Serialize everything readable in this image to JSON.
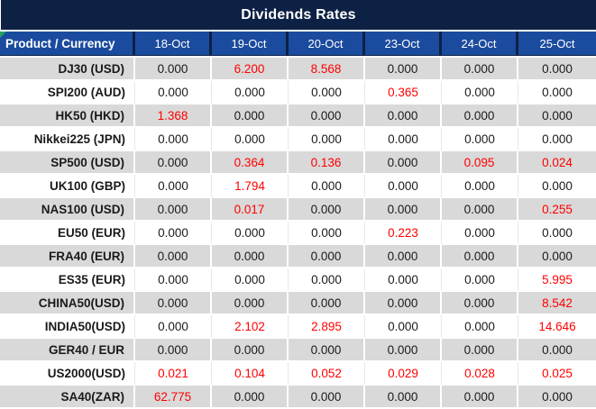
{
  "title": "Dividends Rates",
  "table": {
    "product_header": "Product / Currency",
    "date_columns": [
      "18-Oct",
      "19-Oct",
      "20-Oct",
      "23-Oct",
      "24-Oct",
      "25-Oct"
    ],
    "rows": [
      {
        "product": "DJ30 (USD)",
        "values": [
          "0.000",
          "6.200",
          "8.568",
          "0.000",
          "0.000",
          "0.000"
        ],
        "red": [
          false,
          true,
          true,
          false,
          false,
          false
        ]
      },
      {
        "product": "SPI200 (AUD)",
        "values": [
          "0.000",
          "0.000",
          "0.000",
          "0.365",
          "0.000",
          "0.000"
        ],
        "red": [
          false,
          false,
          false,
          true,
          false,
          false
        ]
      },
      {
        "product": "HK50 (HKD)",
        "values": [
          "1.368",
          "0.000",
          "0.000",
          "0.000",
          "0.000",
          "0.000"
        ],
        "red": [
          true,
          false,
          false,
          false,
          false,
          false
        ]
      },
      {
        "product": "Nikkei225 (JPN)",
        "values": [
          "0.000",
          "0.000",
          "0.000",
          "0.000",
          "0.000",
          "0.000"
        ],
        "red": [
          false,
          false,
          false,
          false,
          false,
          false
        ]
      },
      {
        "product": "SP500 (USD)",
        "values": [
          "0.000",
          "0.364",
          "0.136",
          "0.000",
          "0.095",
          "0.024"
        ],
        "red": [
          false,
          true,
          true,
          false,
          true,
          true
        ]
      },
      {
        "product": "UK100 (GBP)",
        "values": [
          "0.000",
          "1.794",
          "0.000",
          "0.000",
          "0.000",
          "0.000"
        ],
        "red": [
          false,
          true,
          false,
          false,
          false,
          false
        ]
      },
      {
        "product": "NAS100 (USD)",
        "values": [
          "0.000",
          "0.017",
          "0.000",
          "0.000",
          "0.000",
          "0.255"
        ],
        "red": [
          false,
          true,
          false,
          false,
          false,
          true
        ]
      },
      {
        "product": "EU50 (EUR)",
        "values": [
          "0.000",
          "0.000",
          "0.000",
          "0.223",
          "0.000",
          "0.000"
        ],
        "red": [
          false,
          false,
          false,
          true,
          false,
          false
        ]
      },
      {
        "product": "FRA40 (EUR)",
        "values": [
          "0.000",
          "0.000",
          "0.000",
          "0.000",
          "0.000",
          "0.000"
        ],
        "red": [
          false,
          false,
          false,
          false,
          false,
          false
        ]
      },
      {
        "product": "ES35 (EUR)",
        "values": [
          "0.000",
          "0.000",
          "0.000",
          "0.000",
          "0.000",
          "5.995"
        ],
        "red": [
          false,
          false,
          false,
          false,
          false,
          true
        ]
      },
      {
        "product": "CHINA50(USD)",
        "values": [
          "0.000",
          "0.000",
          "0.000",
          "0.000",
          "0.000",
          "8.542"
        ],
        "red": [
          false,
          false,
          false,
          false,
          false,
          true
        ]
      },
      {
        "product": "INDIA50(USD)",
        "values": [
          "0.000",
          "2.102",
          "2.895",
          "0.000",
          "0.000",
          "14.646"
        ],
        "red": [
          false,
          true,
          true,
          false,
          false,
          true
        ]
      },
      {
        "product": "GER40 / EUR",
        "values": [
          "0.000",
          "0.000",
          "0.000",
          "0.000",
          "0.000",
          "0.000"
        ],
        "red": [
          false,
          false,
          false,
          false,
          false,
          false
        ]
      },
      {
        "product": "US2000(USD)",
        "values": [
          "0.021",
          "0.104",
          "0.052",
          "0.029",
          "0.028",
          "0.025"
        ],
        "red": [
          true,
          true,
          true,
          true,
          true,
          true
        ]
      },
      {
        "product": "SA40(ZAR)",
        "values": [
          "62.775",
          "0.000",
          "0.000",
          "0.000",
          "0.000",
          "0.000"
        ],
        "red": [
          true,
          false,
          false,
          false,
          false,
          false
        ]
      }
    ]
  },
  "colors": {
    "title_bg": "#0d2145",
    "header_bg": "#1b4b9e",
    "row_alt_bg": "#d9d9d9",
    "value_red": "#ff0000",
    "flag_green": "#21a366"
  }
}
